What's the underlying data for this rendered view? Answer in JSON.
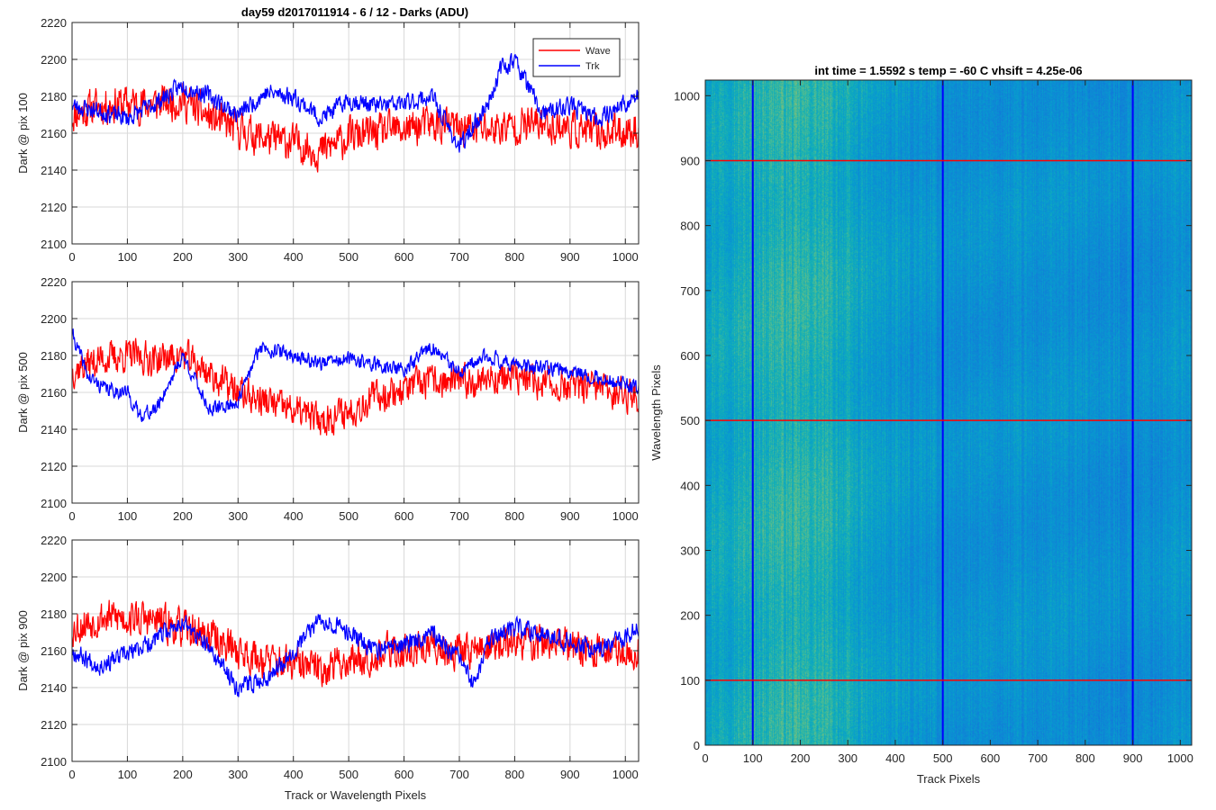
{
  "title": "day59 d2017011914 - 6 / 12 - Darks (ADU)",
  "colors": {
    "wave": "#ff0000",
    "trk": "#0000ff",
    "grid": "#d9d9d9",
    "axis": "#262626"
  },
  "chart_data": [
    {
      "type": "line",
      "panel": "top",
      "ylabel": "Dark @ pix 100",
      "xlim": [
        0,
        1024
      ],
      "ylim": [
        2100,
        2220
      ],
      "xticks": [
        0,
        100,
        200,
        300,
        400,
        500,
        600,
        700,
        800,
        900,
        1000
      ],
      "yticks": [
        2100,
        2120,
        2140,
        2160,
        2180,
        2200,
        2220
      ],
      "grid": true,
      "legend": {
        "placement": "top-right",
        "entries": [
          "Wave",
          "Trk"
        ]
      },
      "series": [
        {
          "name": "Wave",
          "color": "#ff0000",
          "x": [
            0,
            50,
            100,
            150,
            200,
            250,
            300,
            350,
            400,
            450,
            500,
            550,
            600,
            650,
            700,
            750,
            800,
            850,
            900,
            950,
            1024
          ],
          "values": [
            2170,
            2175,
            2176,
            2176,
            2178,
            2168,
            2162,
            2157,
            2155,
            2150,
            2158,
            2160,
            2162,
            2165,
            2163,
            2162,
            2164,
            2165,
            2163,
            2160,
            2162
          ],
          "noise": 10,
          "seed": 11
        },
        {
          "name": "Trk",
          "color": "#0000ff",
          "x": [
            0,
            50,
            100,
            150,
            200,
            250,
            300,
            350,
            400,
            450,
            500,
            550,
            600,
            650,
            700,
            750,
            775,
            800,
            850,
            900,
            950,
            1024
          ],
          "values": [
            2175,
            2172,
            2168,
            2176,
            2186,
            2180,
            2170,
            2182,
            2180,
            2168,
            2178,
            2175,
            2176,
            2180,
            2152,
            2175,
            2195,
            2200,
            2170,
            2175,
            2168,
            2180
          ],
          "noise": 5,
          "seed": 23
        }
      ]
    },
    {
      "type": "line",
      "panel": "middle",
      "ylabel": "Dark @ pix 500",
      "xlim": [
        0,
        1024
      ],
      "ylim": [
        2100,
        2220
      ],
      "xticks": [
        0,
        100,
        200,
        300,
        400,
        500,
        600,
        700,
        800,
        900,
        1000
      ],
      "yticks": [
        2100,
        2120,
        2140,
        2160,
        2180,
        2200,
        2220
      ],
      "grid": true,
      "series": [
        {
          "name": "Wave",
          "color": "#ff0000",
          "x": [
            0,
            50,
            100,
            150,
            200,
            250,
            300,
            350,
            400,
            450,
            500,
            550,
            600,
            650,
            700,
            750,
            800,
            850,
            900,
            950,
            1024
          ],
          "values": [
            2172,
            2178,
            2180,
            2178,
            2180,
            2170,
            2160,
            2155,
            2150,
            2145,
            2150,
            2158,
            2162,
            2166,
            2165,
            2168,
            2168,
            2165,
            2163,
            2162,
            2158
          ],
          "noise": 9,
          "seed": 37
        },
        {
          "name": "Trk",
          "color": "#0000ff",
          "x": [
            0,
            30,
            60,
            100,
            120,
            150,
            200,
            250,
            300,
            340,
            400,
            450,
            500,
            550,
            600,
            650,
            700,
            750,
            800,
            850,
            900,
            950,
            1024
          ],
          "values": [
            2192,
            2168,
            2162,
            2160,
            2148,
            2150,
            2180,
            2150,
            2155,
            2185,
            2180,
            2176,
            2178,
            2175,
            2172,
            2185,
            2170,
            2180,
            2175,
            2173,
            2172,
            2168,
            2162
          ],
          "noise": 4,
          "seed": 41
        }
      ]
    },
    {
      "type": "line",
      "panel": "bottom",
      "xlabel": "Track or Wavelength Pixels",
      "ylabel": "Dark @ pix 900",
      "xlim": [
        0,
        1024
      ],
      "ylim": [
        2100,
        2220
      ],
      "xticks": [
        0,
        100,
        200,
        300,
        400,
        500,
        600,
        700,
        800,
        900,
        1000
      ],
      "yticks": [
        2100,
        2120,
        2140,
        2160,
        2180,
        2200,
        2220
      ],
      "grid": true,
      "series": [
        {
          "name": "Wave",
          "color": "#ff0000",
          "x": [
            0,
            50,
            100,
            150,
            200,
            250,
            300,
            350,
            400,
            450,
            500,
            550,
            600,
            650,
            700,
            750,
            800,
            850,
            900,
            950,
            1024
          ],
          "values": [
            2172,
            2178,
            2178,
            2176,
            2172,
            2168,
            2160,
            2155,
            2152,
            2150,
            2155,
            2158,
            2160,
            2162,
            2160,
            2162,
            2164,
            2165,
            2162,
            2160,
            2160
          ],
          "noise": 10,
          "seed": 53
        },
        {
          "name": "Trk",
          "color": "#0000ff",
          "x": [
            0,
            50,
            100,
            150,
            200,
            250,
            300,
            350,
            400,
            450,
            500,
            550,
            600,
            650,
            700,
            730,
            750,
            800,
            850,
            900,
            950,
            1024
          ],
          "values": [
            2160,
            2152,
            2158,
            2166,
            2176,
            2160,
            2140,
            2145,
            2160,
            2178,
            2170,
            2160,
            2163,
            2170,
            2155,
            2140,
            2165,
            2172,
            2170,
            2165,
            2160,
            2172
          ],
          "noise": 5,
          "seed": 67
        }
      ]
    },
    {
      "type": "heatmap",
      "panel": "right",
      "title": "int time = 1.5592 s    temp = -60 C    vhsift = 4.25e-06",
      "xlabel": "Track Pixels",
      "ylabel": "Wavelength Pixels",
      "xlim": [
        0,
        1024
      ],
      "ylim": [
        0,
        1024
      ],
      "xticks": [
        0,
        100,
        200,
        300,
        400,
        500,
        600,
        700,
        800,
        900,
        1000
      ],
      "yticks": [
        0,
        100,
        200,
        300,
        400,
        500,
        600,
        700,
        800,
        900,
        1000
      ],
      "colormap": "parula",
      "column_profile": {
        "x": [
          0,
          80,
          150,
          250,
          350,
          450,
          550,
          650,
          750,
          850,
          950,
          1024
        ],
        "values": [
          0.55,
          0.58,
          0.62,
          0.6,
          0.5,
          0.46,
          0.44,
          0.45,
          0.45,
          0.43,
          0.44,
          0.48
        ]
      },
      "vlines": {
        "x": [
          100,
          500,
          900
        ],
        "color": "#0000ff"
      },
      "hlines": {
        "y": [
          100,
          500,
          900
        ],
        "color": "#ff0000"
      }
    }
  ]
}
